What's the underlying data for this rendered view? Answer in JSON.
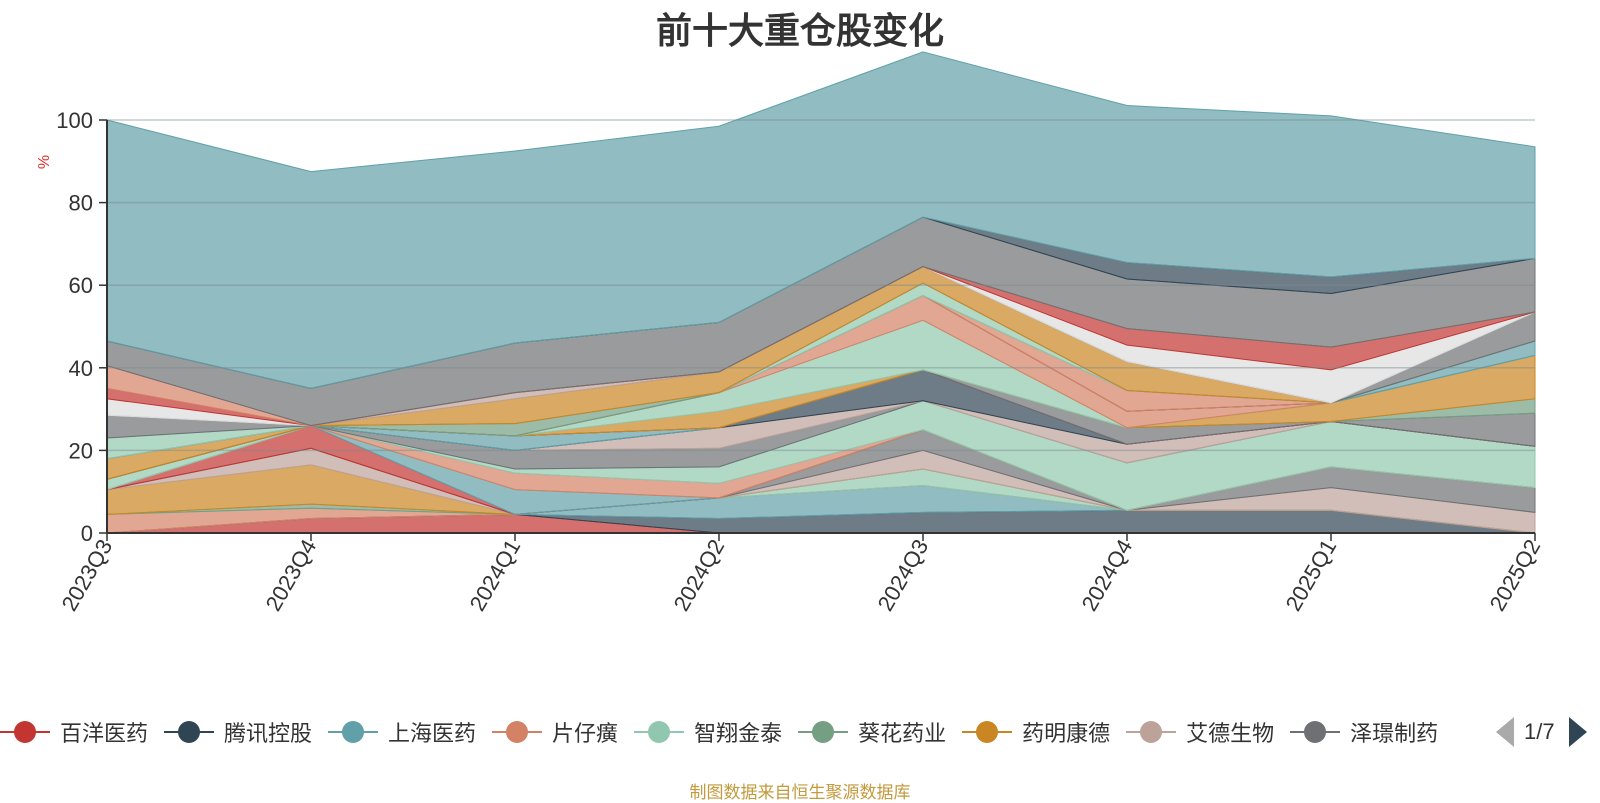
{
  "chart_data": {
    "type": "area",
    "title": "前十大重仓股变化",
    "ylabel": "%",
    "ylim": [
      0,
      100
    ],
    "yticks": [
      0,
      20,
      40,
      60,
      80,
      100
    ],
    "grid": true,
    "categories": [
      "2023Q3",
      "2023Q4",
      "2024Q1",
      "2024Q2",
      "2024Q3",
      "2024Q4",
      "2025Q1",
      "2025Q2"
    ],
    "series": [
      {
        "name": "百洋医药",
        "color": "#c23531",
        "values": [
          0,
          3.5,
          4.5,
          0,
          0,
          0,
          0,
          0
        ]
      },
      {
        "name": "腾讯控股",
        "color": "#2f4554",
        "values": [
          0,
          0,
          0,
          3.5,
          5,
          5.5,
          5.5,
          0
        ]
      },
      {
        "name": "上海医药",
        "color": "#61a0a8",
        "values": [
          0,
          0,
          0,
          5,
          6.5,
          0,
          0,
          0
        ]
      },
      {
        "name": "片仔癀",
        "color": "#d48265",
        "values": [
          4.5,
          2.5,
          0,
          0,
          0,
          0,
          0,
          0
        ]
      },
      {
        "name": "智翔金泰",
        "color": "#91c7ae",
        "values": [
          0,
          0,
          0,
          0,
          4,
          0,
          0,
          0
        ]
      },
      {
        "name": "葵花药业",
        "color": "#749f83",
        "values": [
          0,
          1,
          0,
          0,
          0,
          0,
          0,
          0
        ]
      },
      {
        "name": "药明康德",
        "color": "#ca8622",
        "values": [
          6,
          9.5,
          0,
          0,
          0,
          0,
          0,
          0
        ]
      },
      {
        "name": "艾德生物",
        "color": "#bda29a",
        "values": [
          0,
          4,
          0,
          0,
          4.5,
          0,
          5.5,
          5
        ]
      },
      {
        "name": "泽璟制药",
        "color": "#6e7074",
        "values": [
          0,
          0,
          0,
          0,
          5,
          0,
          5,
          6
        ]
      },
      {
        "name": "",
        "color": "#c23531",
        "values": [
          0,
          5.5,
          0,
          0,
          0,
          0,
          0,
          0
        ]
      },
      {
        "name": "",
        "color": "#61a0a8",
        "values": [
          0,
          0,
          6,
          0,
          0,
          0,
          0,
          0
        ]
      },
      {
        "name": "",
        "color": "#d48265",
        "values": [
          0,
          0,
          4,
          3.5,
          0,
          0,
          0,
          0
        ]
      },
      {
        "name": "",
        "color": "#91c7ae",
        "values": [
          2.5,
          0,
          1,
          4,
          7,
          11.5,
          11,
          10
        ]
      },
      {
        "name": "",
        "color": "#6e7074",
        "values": [
          0,
          0,
          4.5,
          4.5,
          0,
          0,
          0,
          0
        ]
      },
      {
        "name": "",
        "color": "#bda29a",
        "values": [
          0,
          0,
          0,
          5,
          0,
          4.5,
          0,
          0
        ]
      },
      {
        "name": "",
        "color": "#2f4554",
        "values": [
          0,
          0,
          0,
          0,
          7.5,
          0,
          0,
          0
        ]
      },
      {
        "name": "",
        "color": "#61a0a8",
        "values": [
          0,
          0,
          3.5,
          0,
          0,
          0,
          0,
          0
        ]
      },
      {
        "name": "",
        "color": "#c23531",
        "values": [
          0,
          0,
          0,
          0,
          0,
          0,
          0,
          0
        ]
      },
      {
        "name": "",
        "color": "#6e7074",
        "values": [
          0,
          0,
          0,
          0,
          0,
          4,
          0,
          8
        ]
      },
      {
        "name": "",
        "color": "#749f83",
        "values": [
          0,
          0,
          0,
          0,
          0,
          0,
          0,
          3.5
        ]
      },
      {
        "name": "",
        "color": "#ca8622",
        "values": [
          5,
          0,
          0,
          4,
          0,
          0,
          4.5,
          10.5
        ]
      },
      {
        "name": "",
        "color": "#91c7ae",
        "values": [
          0,
          0,
          0,
          4.5,
          12,
          0,
          0,
          0
        ]
      },
      {
        "name": "",
        "color": "#d48265",
        "values": [
          0,
          0,
          0,
          0,
          6,
          4,
          0,
          0
        ]
      },
      {
        "name": "",
        "color": "#2f4554",
        "values": [
          0,
          0,
          0,
          0,
          0,
          0,
          0,
          0
        ]
      },
      {
        "name": "",
        "color": "#d48265",
        "values": [
          0,
          0,
          0,
          0,
          0,
          5,
          0,
          0
        ]
      },
      {
        "name": "",
        "color": "#749f83",
        "values": [
          0,
          0,
          3,
          0,
          0,
          0,
          0,
          0
        ]
      },
      {
        "name": "",
        "color": "#91c7ae",
        "values": [
          0,
          0,
          0,
          0,
          3,
          0,
          0,
          0
        ]
      },
      {
        "name": "",
        "color": "#61a0a8",
        "values": [
          0,
          0,
          0,
          0,
          0,
          0,
          0,
          3.5
        ]
      },
      {
        "name": "",
        "color": "#ca8622",
        "values": [
          0,
          0,
          6,
          5,
          4,
          7,
          0,
          0
        ]
      },
      {
        "name": "",
        "color": "#bda29a",
        "values": [
          0,
          0,
          1.5,
          0,
          0,
          0,
          0,
          0
        ]
      },
      {
        "name": "",
        "color": "#6e7074",
        "values": [
          0,
          0,
          0,
          0,
          0,
          0,
          0,
          0
        ]
      },
      {
        "name": "",
        "color": "#91c7ae",
        "values": [
          5,
          0,
          0,
          0,
          0,
          0,
          0,
          0
        ]
      },
      {
        "name": "",
        "color": "#6e7074",
        "values": [
          5.5,
          0,
          0,
          0,
          0,
          0,
          0,
          7
        ]
      },
      {
        "name": "",
        "color": "#dddddd",
        "values": [
          4,
          0,
          0,
          0,
          0,
          4,
          8,
          0
        ]
      },
      {
        "name": "",
        "color": "#c23531",
        "values": [
          2.5,
          0,
          0,
          0,
          0,
          4,
          5.5,
          0
        ]
      },
      {
        "name": "",
        "color": "#d48265",
        "values": [
          5.5,
          0,
          0,
          0,
          0,
          0,
          0,
          0
        ]
      },
      {
        "name": "",
        "color": "#6e7074",
        "values": [
          6,
          9,
          12,
          12,
          12,
          12,
          13,
          13
        ]
      },
      {
        "name": "",
        "color": "#2f4554",
        "values": [
          0,
          0,
          0,
          0,
          0,
          4,
          4,
          0
        ]
      },
      {
        "name": "",
        "color": "#61a0a8",
        "values": [
          53.5,
          52.5,
          46.5,
          47.5,
          40,
          38,
          39,
          27
        ]
      }
    ]
  },
  "legend": {
    "items": [
      {
        "name": "百洋医药",
        "color": "#c23531"
      },
      {
        "name": "腾讯控股",
        "color": "#2f4554"
      },
      {
        "name": "上海医药",
        "color": "#61a0a8"
      },
      {
        "name": "片仔癀",
        "color": "#d48265"
      },
      {
        "name": "智翔金泰",
        "color": "#91c7ae"
      },
      {
        "name": "葵花药业",
        "color": "#749f83"
      },
      {
        "name": "药明康德",
        "color": "#ca8622"
      },
      {
        "name": "艾德生物",
        "color": "#bda29a"
      },
      {
        "name": "泽璟制药",
        "color": "#6e7074"
      }
    ],
    "page_label": "1/7"
  },
  "footer": {
    "text": "制图数据来自恒生聚源数据库"
  }
}
